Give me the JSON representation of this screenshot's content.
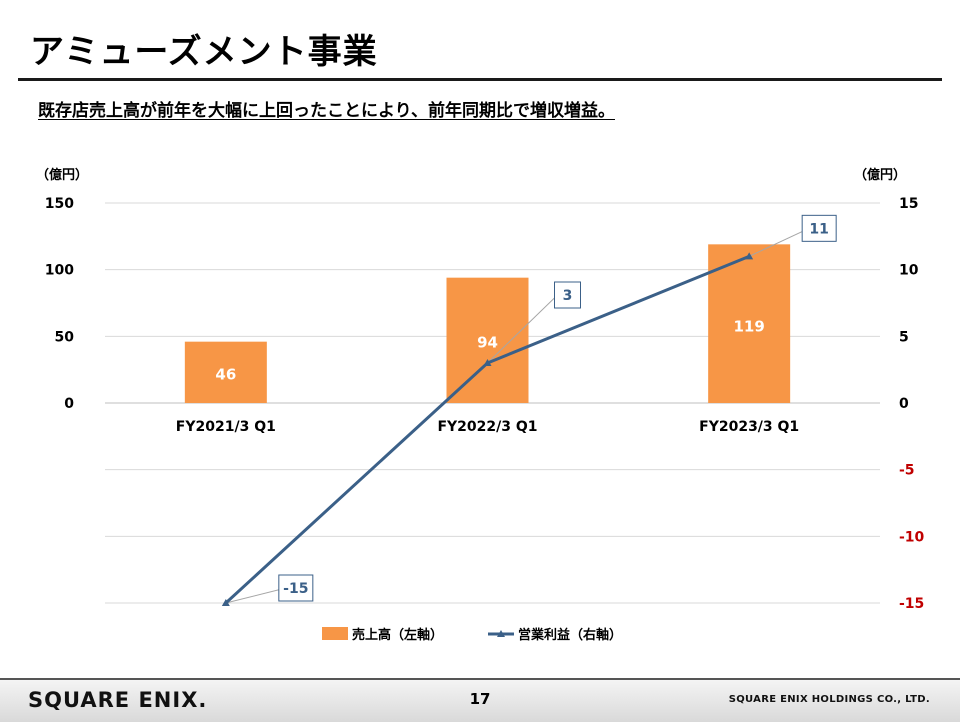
{
  "page": {
    "title": "アミューズメント事業",
    "subtitle": "既存店売上高が前年を大幅に上回ったことにより、前年同期比で増収増益。",
    "page_number": "17",
    "logo_text": "SQUARE ENIX.",
    "company": "SQUARE ENIX HOLDINGS CO., LTD."
  },
  "colors": {
    "bar": "#F79646",
    "line": "#3B6088",
    "negative_tick": "#C00000",
    "grid": "#D9D9D9",
    "label_text": "#3B6088"
  },
  "chart_data": {
    "type": "bar",
    "categories": [
      "FY2021/3 Q1",
      "FY2022/3 Q1",
      "FY2023/3 Q1"
    ],
    "series": [
      {
        "name": "売上高（左軸）",
        "type": "bar",
        "axis": "left",
        "values": [
          46,
          94,
          119
        ]
      },
      {
        "name": "営業利益（右軸）",
        "type": "line",
        "axis": "right",
        "values": [
          -15,
          3,
          11
        ]
      }
    ],
    "left_axis": {
      "unit": "（億円）",
      "ticks": [
        0,
        50,
        100,
        150
      ],
      "range": [
        -150,
        150
      ]
    },
    "right_axis": {
      "unit": "（億円）",
      "ticks": [
        -15,
        -10,
        -5,
        0,
        5,
        10,
        15
      ],
      "range": [
        -15,
        15
      ]
    },
    "grid": true,
    "legend_position": "bottom"
  }
}
